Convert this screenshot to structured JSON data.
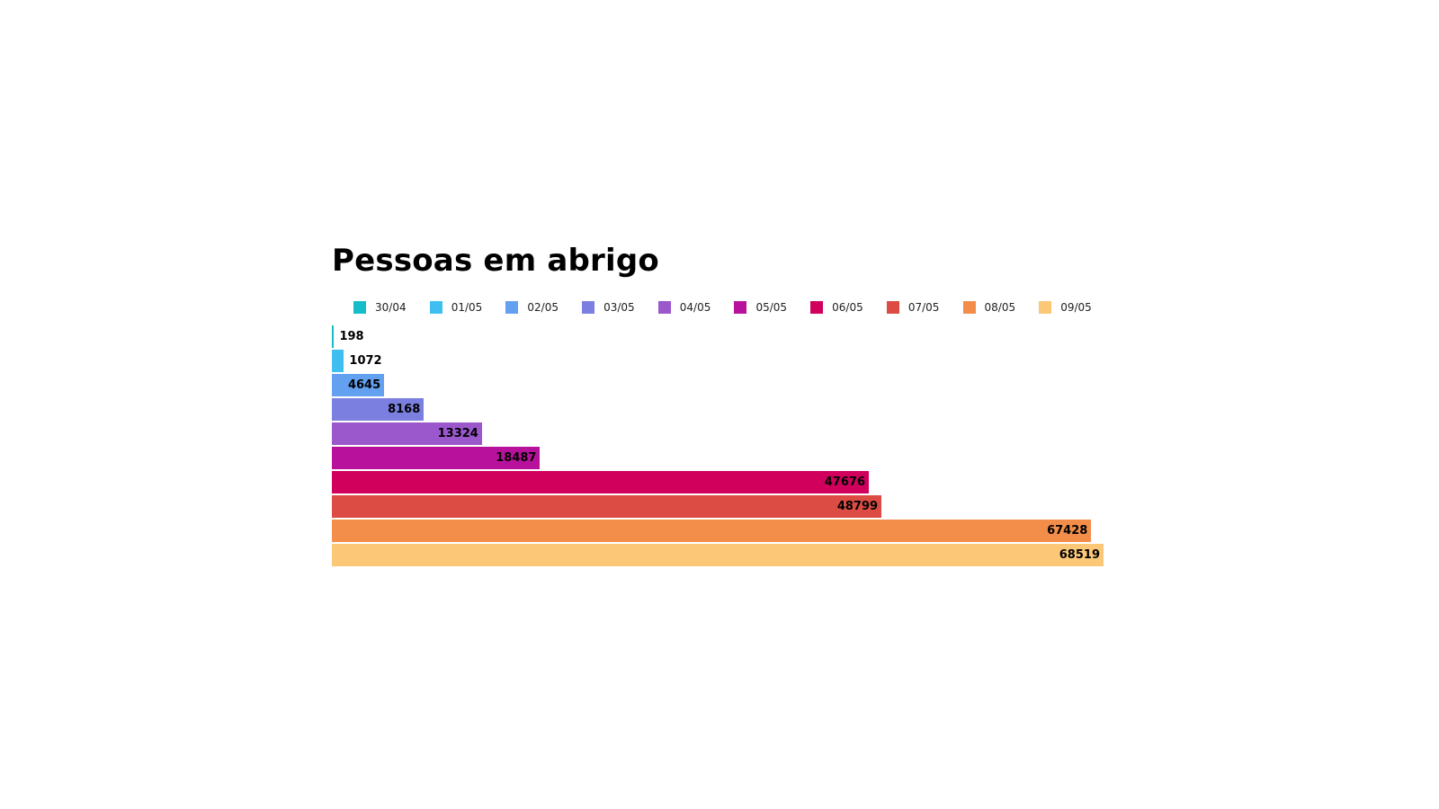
{
  "chart_data": {
    "type": "bar",
    "orientation": "horizontal",
    "title": "Pessoas em abrigo",
    "xlabel": "",
    "ylabel": "",
    "categories": [
      "30/04",
      "01/05",
      "02/05",
      "03/05",
      "04/05",
      "05/05",
      "06/05",
      "07/05",
      "08/05",
      "09/05"
    ],
    "values": [
      198,
      1072,
      4645,
      8168,
      13324,
      18487,
      47676,
      48799,
      67428,
      68519
    ],
    "data_labels": [
      "198",
      "1072",
      "4645",
      "8168",
      "13324",
      "18487",
      "47676",
      "48799",
      "67428",
      "68519"
    ],
    "colors": [
      "#17bcc9",
      "#3fbff0",
      "#63a0f0",
      "#7b80e0",
      "#9a58cc",
      "#b8129c",
      "#d0005c",
      "#dc4c44",
      "#f28e4a",
      "#fcc878"
    ],
    "xlim": [
      0,
      68519
    ],
    "grid": false,
    "legend": "top",
    "legend_entries": [
      "30/04",
      "01/05",
      "02/05",
      "03/05",
      "04/05",
      "05/05",
      "06/05",
      "07/05",
      "08/05",
      "09/05"
    ]
  }
}
